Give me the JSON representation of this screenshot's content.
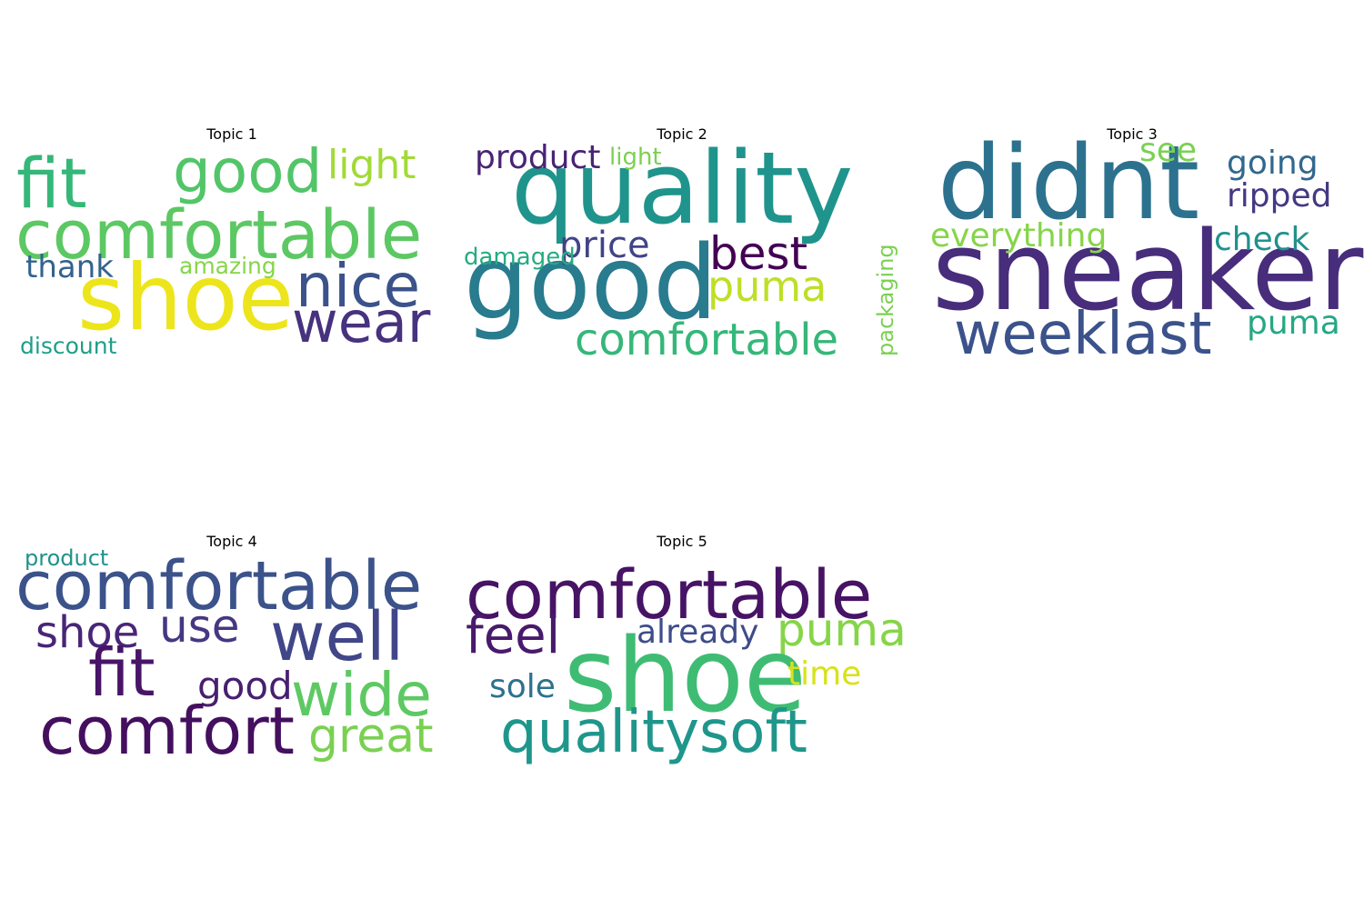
{
  "figure": {
    "panels": [
      {
        "title": "Topic 1",
        "words": [
          {
            "text": "shoe",
            "color": "#ede51b"
          },
          {
            "text": "comfortable",
            "color": "#5cc863"
          },
          {
            "text": "fit",
            "color": "#35b779"
          },
          {
            "text": "good",
            "color": "#52c569"
          },
          {
            "text": "light",
            "color": "#a2da37"
          },
          {
            "text": "nice",
            "color": "#3b528b"
          },
          {
            "text": "wear",
            "color": "#46327e"
          },
          {
            "text": "thank",
            "color": "#33638d"
          },
          {
            "text": "amazing",
            "color": "#86d549"
          },
          {
            "text": "discount",
            "color": "#1f9e89"
          }
        ]
      },
      {
        "title": "Topic 2",
        "words": [
          {
            "text": "quality",
            "color": "#1f948c"
          },
          {
            "text": "good",
            "color": "#297b8e"
          },
          {
            "text": "product",
            "color": "#482475"
          },
          {
            "text": "light",
            "color": "#7ad151"
          },
          {
            "text": "best",
            "color": "#440154"
          },
          {
            "text": "price",
            "color": "#414487"
          },
          {
            "text": "damaged",
            "color": "#25ab82"
          },
          {
            "text": "puma",
            "color": "#bddf26"
          },
          {
            "text": "comfortable",
            "color": "#35b779"
          },
          {
            "text": "packaging",
            "color": "#7ad151"
          }
        ]
      },
      {
        "title": "Topic 3",
        "words": [
          {
            "text": "didnt",
            "color": "#2c728e"
          },
          {
            "text": "sneaker",
            "color": "#472d7b"
          },
          {
            "text": "weeklast",
            "color": "#3b528b"
          },
          {
            "text": "see",
            "color": "#7ad151"
          },
          {
            "text": "going",
            "color": "#31688e"
          },
          {
            "text": "ripped",
            "color": "#443983"
          },
          {
            "text": "everything",
            "color": "#86d549"
          },
          {
            "text": "check",
            "color": "#21918c"
          },
          {
            "text": "puma",
            "color": "#26a784"
          }
        ]
      },
      {
        "title": "Topic 4",
        "words": [
          {
            "text": "comfortable",
            "color": "#3b528b"
          },
          {
            "text": "product",
            "color": "#21918c"
          },
          {
            "text": "shoe",
            "color": "#482677"
          },
          {
            "text": "use",
            "color": "#453781"
          },
          {
            "text": "well",
            "color": "#404688"
          },
          {
            "text": "fit",
            "color": "#481467"
          },
          {
            "text": "good",
            "color": "#481f70"
          },
          {
            "text": "wide",
            "color": "#5ec962"
          },
          {
            "text": "comfort",
            "color": "#440f5f"
          },
          {
            "text": "great",
            "color": "#7ad151"
          }
        ]
      },
      {
        "title": "Topic 5",
        "words": [
          {
            "text": "comfortable",
            "color": "#471365"
          },
          {
            "text": "feel",
            "color": "#481a6c"
          },
          {
            "text": "already",
            "color": "#3e4c8a"
          },
          {
            "text": "puma",
            "color": "#86d549"
          },
          {
            "text": "shoe",
            "color": "#3fbc73"
          },
          {
            "text": "sole",
            "color": "#2d718e"
          },
          {
            "text": "time",
            "color": "#d8e219"
          },
          {
            "text": "qualitysoft",
            "color": "#1f968b"
          }
        ]
      }
    ]
  }
}
